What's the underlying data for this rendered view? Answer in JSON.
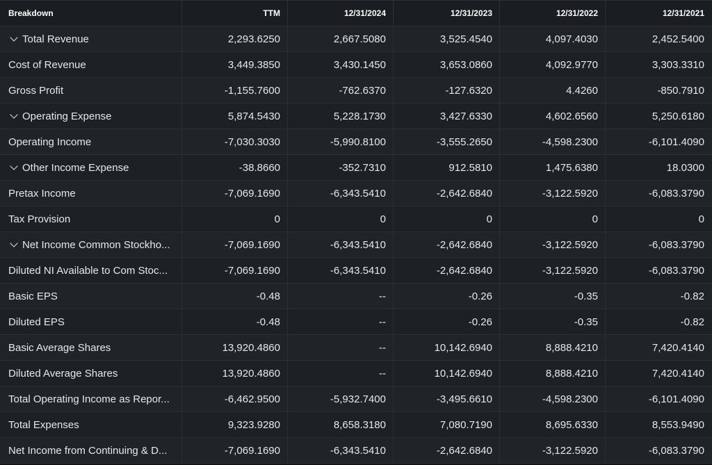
{
  "columns": [
    "Breakdown",
    "TTM",
    "12/31/2024",
    "12/31/2023",
    "12/31/2022",
    "12/31/2021"
  ],
  "rows": [
    {
      "label": "Total Revenue",
      "expandable": true,
      "values": [
        "2,293.6250",
        "2,667.5080",
        "3,525.4540",
        "4,097.4030",
        "2,452.5400"
      ]
    },
    {
      "label": "Cost of Revenue",
      "expandable": false,
      "values": [
        "3,449.3850",
        "3,430.1450",
        "3,653.0860",
        "4,092.9770",
        "3,303.3310"
      ]
    },
    {
      "label": "Gross Profit",
      "expandable": false,
      "values": [
        "-1,155.7600",
        "-762.6370",
        "-127.6320",
        "4.4260",
        "-850.7910"
      ]
    },
    {
      "label": "Operating Expense",
      "expandable": true,
      "values": [
        "5,874.5430",
        "5,228.1730",
        "3,427.6330",
        "4,602.6560",
        "5,250.6180"
      ]
    },
    {
      "label": "Operating Income",
      "expandable": false,
      "values": [
        "-7,030.3030",
        "-5,990.8100",
        "-3,555.2650",
        "-4,598.2300",
        "-6,101.4090"
      ]
    },
    {
      "label": "Other Income Expense",
      "expandable": true,
      "values": [
        "-38.8660",
        "-352.7310",
        "912.5810",
        "1,475.6380",
        "18.0300"
      ]
    },
    {
      "label": "Pretax Income",
      "expandable": false,
      "values": [
        "-7,069.1690",
        "-6,343.5410",
        "-2,642.6840",
        "-3,122.5920",
        "-6,083.3790"
      ]
    },
    {
      "label": "Tax Provision",
      "expandable": false,
      "values": [
        "0",
        "0",
        "0",
        "0",
        "0"
      ]
    },
    {
      "label": "Net Income Common Stockho...",
      "expandable": true,
      "values": [
        "-7,069.1690",
        "-6,343.5410",
        "-2,642.6840",
        "-3,122.5920",
        "-6,083.3790"
      ]
    },
    {
      "label": "Diluted NI Available to Com Stoc...",
      "expandable": false,
      "values": [
        "-7,069.1690",
        "-6,343.5410",
        "-2,642.6840",
        "-3,122.5920",
        "-6,083.3790"
      ]
    },
    {
      "label": "Basic EPS",
      "expandable": false,
      "values": [
        "-0.48",
        "--",
        "-0.26",
        "-0.35",
        "-0.82"
      ]
    },
    {
      "label": "Diluted EPS",
      "expandable": false,
      "highlight": true,
      "values": [
        "-0.48",
        "--",
        "-0.26",
        "-0.35",
        "-0.82"
      ]
    },
    {
      "label": "Basic Average Shares",
      "expandable": false,
      "values": [
        "13,920.4860",
        "--",
        "10,142.6940",
        "8,888.4210",
        "7,420.4140"
      ]
    },
    {
      "label": "Diluted Average Shares",
      "expandable": false,
      "values": [
        "13,920.4860",
        "--",
        "10,142.6940",
        "8,888.4210",
        "7,420.4140"
      ]
    },
    {
      "label": "Total Operating Income as Repor...",
      "expandable": false,
      "values": [
        "-6,462.9500",
        "-5,932.7400",
        "-3,495.6610",
        "-4,598.2300",
        "-6,101.4090"
      ]
    },
    {
      "label": "Total Expenses",
      "expandable": false,
      "values": [
        "9,323.9280",
        "8,658.3180",
        "7,080.7190",
        "8,695.6330",
        "8,553.9490"
      ]
    },
    {
      "label": "Net Income from Continuing & D...",
      "expandable": false,
      "values": [
        "-7,069.1690",
        "-6,343.5410",
        "-2,642.6840",
        "-3,122.5920",
        "-6,083.3790"
      ]
    }
  ]
}
